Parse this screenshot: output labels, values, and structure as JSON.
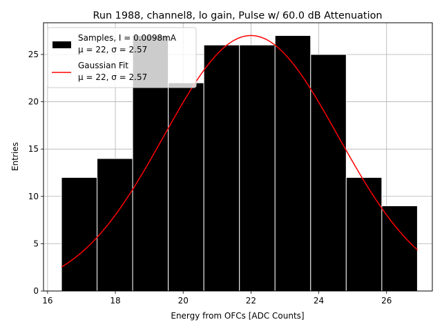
{
  "chart_data": {
    "type": "bar",
    "subtype": "histogram-with-fit",
    "title": "Run 1988, channel8, lo gain, Pulse w/ 60.0 dB Attenuation",
    "xlabel": "Energy from OFCs [ADC Counts]",
    "ylabel": "Entries",
    "xlim": [
      15.88,
      27.35
    ],
    "ylim": [
      0,
      28.35
    ],
    "xticks": [
      16,
      18,
      20,
      22,
      24,
      26
    ],
    "yticks": [
      0,
      5,
      10,
      15,
      20,
      25
    ],
    "grid": true,
    "legend_position": "top-left",
    "histogram": {
      "name": "Samples, I = 0.0098mA",
      "stats": "μ = 22, σ = 2.57",
      "bin_edges": [
        16.41,
        17.46,
        18.51,
        19.56,
        20.61,
        21.66,
        22.71,
        23.76,
        24.81,
        25.86,
        26.91
      ],
      "counts": [
        12,
        14,
        27,
        22,
        26,
        26,
        27,
        25,
        12,
        9
      ],
      "color": "#000000",
      "edgecolor": "#ffffff"
    },
    "fit": {
      "name": "Gaussian Fit",
      "stats": "μ = 22, σ = 2.57",
      "mu": 22,
      "sigma": 2.57,
      "amplitude": 27.0,
      "x_range": [
        16.41,
        26.91
      ],
      "color": "#ff0000"
    },
    "legend": [
      {
        "label_line1": "Samples, I = 0.0098mA",
        "label_line2": "μ = 22, σ = 2.57",
        "marker": "black-patch"
      },
      {
        "label_line1": "Gaussian Fit",
        "label_line2": "μ = 22, σ = 2.57",
        "marker": "red-line"
      }
    ]
  }
}
